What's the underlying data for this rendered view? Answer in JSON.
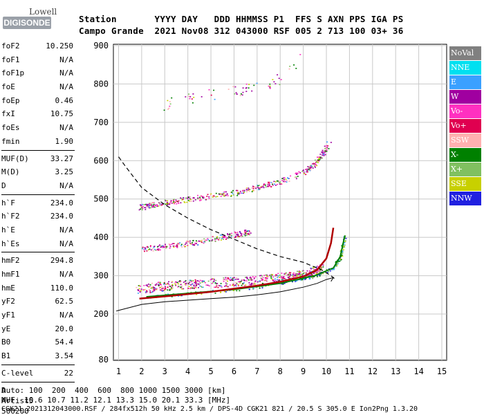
{
  "logo": {
    "top": "Lowell",
    "bottom": "DIGISONDE"
  },
  "header": {
    "line1": "Station       YYYY DAY   DDD HHMMSS P1  FFS S AXN PPS IGA PS",
    "line2": "Campo Grande  2021 Nov08 312 043000 RSF 005 2 713 100 03+ 36"
  },
  "params_a": [
    {
      "name": "foF2",
      "value": "10.250"
    },
    {
      "name": "foF1",
      "value": "N/A"
    },
    {
      "name": "foF1p",
      "value": "N/A"
    },
    {
      "name": "foE",
      "value": "N/A"
    },
    {
      "name": "foEp",
      "value": "0.46"
    },
    {
      "name": "fxI",
      "value": "10.75"
    },
    {
      "name": "foEs",
      "value": "N/A"
    },
    {
      "name": "fmin",
      "value": "1.90"
    }
  ],
  "params_b": [
    {
      "name": "MUF(D)",
      "value": "33.27"
    },
    {
      "name": "M(D)",
      "value": "3.25"
    },
    {
      "name": "D",
      "value": "N/A"
    }
  ],
  "params_c": [
    {
      "name": "h`F",
      "value": "234.0"
    },
    {
      "name": "h`F2",
      "value": "234.0"
    },
    {
      "name": "h`E",
      "value": "N/A"
    },
    {
      "name": "h`Es",
      "value": "N/A"
    }
  ],
  "params_d": [
    {
      "name": "hmF2",
      "value": "294.8"
    },
    {
      "name": "hmF1",
      "value": "N/A"
    },
    {
      "name": "hmE",
      "value": "110.0"
    },
    {
      "name": "yF2",
      "value": "62.5"
    },
    {
      "name": "yF1",
      "value": "N/A"
    },
    {
      "name": "yE",
      "value": "20.0"
    },
    {
      "name": "B0",
      "value": "54.4"
    },
    {
      "name": "B1",
      "value": "3.54"
    }
  ],
  "params_e": [
    {
      "name": "C-level",
      "value": "22"
    }
  ],
  "auto": {
    "l1": "Auto:",
    "l2": "Artist5",
    "l3": "500200"
  },
  "legend": [
    {
      "label": "NoVal",
      "color": "#808080"
    },
    {
      "label": "NNE",
      "color": "#00e0f0"
    },
    {
      "label": "E",
      "color": "#3aa0ff"
    },
    {
      "label": "W",
      "color": "#a000a0"
    },
    {
      "label": "Vo-",
      "color": "#ff30c0"
    },
    {
      "label": "Vo+",
      "color": "#e00050"
    },
    {
      "label": "SSW",
      "color": "#ffb0b0"
    },
    {
      "label": "X-",
      "color": "#008000"
    },
    {
      "label": "X+",
      "color": "#80c060"
    },
    {
      "label": "SSE",
      "color": "#c8d000"
    },
    {
      "label": "NNW",
      "color": "#2020e0"
    }
  ],
  "footer": {
    "l1": "D     100  200  400  600  800 1000 1500 3000 [km]",
    "l2": "MUF  10.6 10.7 11.2 12.1 13.3 15.0 20.1 33.3 [MHz]",
    "l3": "CGK21_2021312043000.RSF / 284fx512h 50 kHz 2.5 km / DPS-4D CGK21 821 / 20.5 S 305.0 E Ion2Png 1.3.20"
  },
  "chart_data": {
    "type": "scatter",
    "xlim": [
      1,
      15
    ],
    "ylim": [
      80,
      900
    ],
    "xticks": [
      "1",
      "2",
      "3",
      "4",
      "5",
      "6",
      "7",
      "8",
      "9",
      "10",
      "11",
      "12",
      "13",
      "14",
      "15"
    ],
    "yticks": [
      "900",
      "800",
      "700",
      "600",
      "500",
      "400",
      "300",
      "200",
      "80"
    ],
    "grid": true,
    "trace_o": {
      "x": [
        1.9,
        3,
        4,
        5,
        6,
        7,
        8,
        9,
        9.6,
        10,
        10.2,
        10.3
      ],
      "y": [
        240,
        246,
        252,
        258,
        266,
        274,
        284,
        298,
        315,
        345,
        385,
        425
      ]
    },
    "trace_x": {
      "x": [
        2.2,
        4,
        6,
        8,
        9.5,
        10.3,
        10.6,
        10.8
      ],
      "y": [
        245,
        254,
        264,
        280,
        300,
        320,
        350,
        405
      ]
    },
    "true_height": {
      "x": [
        0.9,
        2,
        3,
        4,
        5,
        6,
        7,
        8,
        9,
        9.6,
        10,
        10.3,
        10.2
      ],
      "y": [
        208,
        225,
        232,
        236,
        240,
        244,
        250,
        258,
        270,
        280,
        290,
        295,
        285
      ]
    },
    "model_profile": {
      "x": [
        1,
        1.3,
        2,
        3,
        4,
        5,
        6,
        7,
        8,
        9,
        9.8,
        10.2,
        10.4
      ],
      "y": [
        610,
        585,
        530,
        485,
        450,
        420,
        395,
        370,
        350,
        335,
        315,
        300,
        290
      ]
    },
    "layers": [
      {
        "name": "F1 band",
        "x": [
          1.8,
          2.7,
          3.7,
          4.7,
          5.8,
          7,
          8,
          8.7,
          9.3,
          9.8
        ],
        "y": [
          265,
          272,
          277,
          280,
          285,
          290,
          296,
          300,
          308,
          320
        ],
        "spread": 12,
        "n": 620
      },
      {
        "name": "2F",
        "x": [
          1.9,
          2.6,
          3.6,
          4.8,
          6,
          7,
          8,
          9,
          9.6,
          10.1
        ],
        "y": [
          478,
          488,
          497,
          507,
          517,
          530,
          547,
          570,
          600,
          645
        ],
        "spread": 7,
        "n": 430
      },
      {
        "name": "2F echo",
        "x": [
          2,
          3,
          4,
          5,
          6,
          6.7
        ],
        "y": [
          368,
          378,
          385,
          396,
          408,
          416
        ],
        "spread": 7,
        "n": 220
      },
      {
        "name": "3F",
        "x": [
          3,
          4,
          5,
          6,
          7,
          8,
          9
        ],
        "y": [
          745,
          765,
          775,
          785,
          790,
          815,
          870
        ],
        "spread": 15,
        "n": 60
      }
    ]
  }
}
